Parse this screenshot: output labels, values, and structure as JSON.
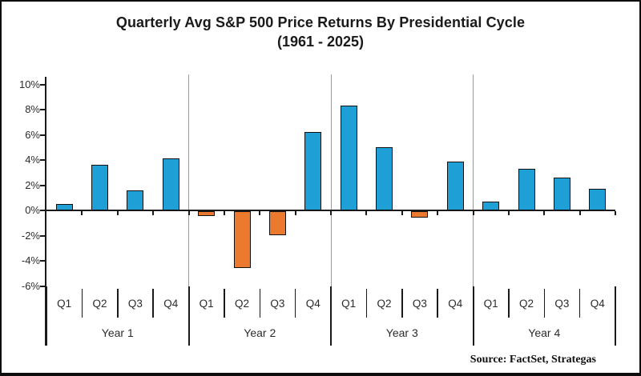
{
  "chart_data": {
    "type": "bar",
    "title": "Quarterly Avg S&P 500 Price Returns By Presidential Cycle",
    "subtitle": "(1961 - 2025)",
    "categories": [
      "Q1",
      "Q2",
      "Q3",
      "Q4"
    ],
    "groups": [
      {
        "label": "Year 1",
        "values": [
          0.5,
          3.6,
          1.6,
          4.1
        ]
      },
      {
        "label": "Year 2",
        "values": [
          -0.4,
          -4.5,
          -1.9,
          6.2
        ]
      },
      {
        "label": "Year 3",
        "values": [
          8.3,
          5.0,
          -0.5,
          3.9
        ]
      },
      {
        "label": "Year 4",
        "values": [
          0.7,
          3.3,
          2.6,
          1.7
        ]
      }
    ],
    "y_ticks": [
      10,
      8,
      6,
      4,
      2,
      0,
      -2,
      -4,
      -6
    ],
    "y_tick_format": "{v}%",
    "ylim": [
      -8.5,
      10.5
    ],
    "grid": false,
    "legend": false,
    "positive_color": "#1EA0D6",
    "negative_color": "#EB7A2F",
    "axis_color": "#1a1a1a",
    "separator_color": "#9b9b9b",
    "source": "Source: FactSet, Strategas"
  }
}
